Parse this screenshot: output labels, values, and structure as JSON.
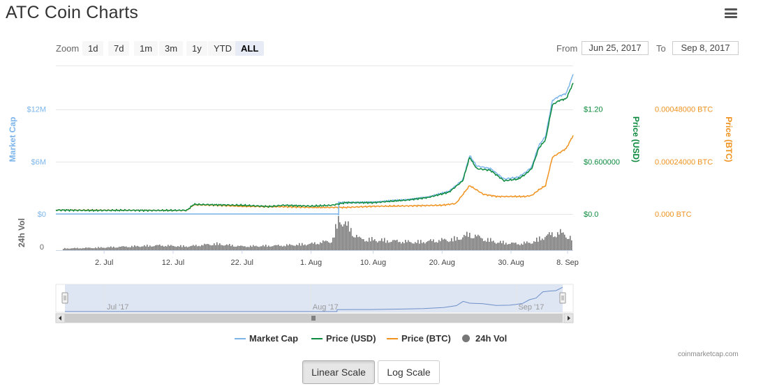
{
  "title": "ATC Coin Charts",
  "icons": {
    "menu": "hamburger-menu-icon"
  },
  "zoom": {
    "label": "Zoom",
    "buttons": [
      "1d",
      "7d",
      "1m",
      "3m",
      "1y",
      "YTD",
      "ALL"
    ],
    "active": "ALL"
  },
  "range": {
    "from_label": "From",
    "from_value": "Jun 25, 2017",
    "to_label": "To",
    "to_value": "Sep 8, 2017"
  },
  "legend": {
    "items": [
      {
        "label": "Market Cap",
        "color": "#7cb5ec"
      },
      {
        "label": "Price (USD)",
        "color": "#0c8a3d"
      },
      {
        "label": "Price (BTC)",
        "color": "#f0921f"
      },
      {
        "label": "24h Vol",
        "color": "#777777"
      }
    ]
  },
  "credit": "coinmarketcap.com",
  "scale_buttons": {
    "linear": "Linear Scale",
    "log": "Log Scale",
    "active": "linear"
  },
  "chart_data": {
    "type": "line",
    "x_range": [
      "2017-06-25",
      "2017-09-08"
    ],
    "x_ticks": [
      "2. Jul",
      "12. Jul",
      "22. Jul",
      "1. Aug",
      "10. Aug",
      "20. Aug",
      "30. Aug",
      "8. Sep"
    ],
    "navigator_ticks": [
      "Jul '17",
      "Aug '17",
      "Sep '17"
    ],
    "axes": {
      "market_cap": {
        "label": "Market Cap",
        "ticks": [
          "$0",
          "$6M",
          "$12M"
        ],
        "range": [
          0,
          17000000
        ],
        "color": "#7cb5ec"
      },
      "price_usd": {
        "label": "Price (USD)",
        "ticks": [
          "$0.0",
          "$0.600000",
          "$1.20"
        ],
        "range": [
          0,
          1.7
        ],
        "color": "#0c8a3d"
      },
      "price_btc": {
        "label": "Price (BTC)",
        "ticks": [
          "0.000 BTC",
          "0.00024000 BTC",
          "0.00048000 BTC"
        ],
        "range": [
          0,
          0.00068
        ],
        "color": "#f0921f"
      },
      "volume": {
        "label": "24h Vol",
        "ticks": [
          "0"
        ],
        "color": "#777777"
      }
    },
    "series": [
      {
        "name": "Price (USD)",
        "axis": "price_usd",
        "points": [
          [
            "2017-06-25",
            0.045
          ],
          [
            "2017-06-30",
            0.04
          ],
          [
            "2017-07-05",
            0.042
          ],
          [
            "2017-07-10",
            0.04
          ],
          [
            "2017-07-14",
            0.042
          ],
          [
            "2017-07-15",
            0.11
          ],
          [
            "2017-07-18",
            0.105
          ],
          [
            "2017-07-22",
            0.1
          ],
          [
            "2017-07-26",
            0.085
          ],
          [
            "2017-07-28",
            0.1
          ],
          [
            "2017-08-01",
            0.09
          ],
          [
            "2017-08-04",
            0.1
          ],
          [
            "2017-08-06",
            0.13
          ],
          [
            "2017-08-10",
            0.13
          ],
          [
            "2017-08-15",
            0.16
          ],
          [
            "2017-08-18",
            0.19
          ],
          [
            "2017-08-21",
            0.25
          ],
          [
            "2017-08-23",
            0.38
          ],
          [
            "2017-08-24",
            0.65
          ],
          [
            "2017-08-25",
            0.52
          ],
          [
            "2017-08-27",
            0.5
          ],
          [
            "2017-08-29",
            0.38
          ],
          [
            "2017-08-31",
            0.4
          ],
          [
            "2017-09-01",
            0.45
          ],
          [
            "2017-09-02",
            0.52
          ],
          [
            "2017-09-03",
            0.75
          ],
          [
            "2017-09-04",
            0.85
          ],
          [
            "2017-09-05",
            1.25
          ],
          [
            "2017-09-06",
            1.3
          ],
          [
            "2017-09-07",
            1.32
          ],
          [
            "2017-09-08",
            1.5
          ]
        ]
      },
      {
        "name": "Market Cap",
        "axis": "market_cap",
        "points": [
          [
            "2017-06-25",
            0
          ],
          [
            "2017-08-05",
            0
          ],
          [
            "2017-08-05",
            1300000
          ],
          [
            "2017-08-10",
            1350000
          ],
          [
            "2017-08-15",
            1650000
          ],
          [
            "2017-08-18",
            1950000
          ],
          [
            "2017-08-21",
            2600000
          ],
          [
            "2017-08-23",
            3900000
          ],
          [
            "2017-08-24",
            6700000
          ],
          [
            "2017-08-25",
            5500000
          ],
          [
            "2017-08-27",
            5200000
          ],
          [
            "2017-08-29",
            4000000
          ],
          [
            "2017-08-31",
            4200000
          ],
          [
            "2017-09-01",
            4700000
          ],
          [
            "2017-09-02",
            5400000
          ],
          [
            "2017-09-03",
            7800000
          ],
          [
            "2017-09-04",
            8900000
          ],
          [
            "2017-09-05",
            13000000
          ],
          [
            "2017-09-06",
            13500000
          ],
          [
            "2017-09-07",
            13800000
          ],
          [
            "2017-09-08",
            16000000
          ]
        ]
      },
      {
        "name": "Price (BTC)",
        "axis": "price_btc",
        "points": [
          [
            "2017-06-25",
            1.8e-05
          ],
          [
            "2017-07-05",
            1.7e-05
          ],
          [
            "2017-07-14",
            1.6e-05
          ],
          [
            "2017-07-15",
            4.2e-05
          ],
          [
            "2017-07-18",
            4e-05
          ],
          [
            "2017-07-22",
            3.5e-05
          ],
          [
            "2017-07-28",
            3.3e-05
          ],
          [
            "2017-08-01",
            3e-05
          ],
          [
            "2017-08-06",
            3e-05
          ],
          [
            "2017-08-10",
            3.5e-05
          ],
          [
            "2017-08-15",
            3.7e-05
          ],
          [
            "2017-08-20",
            4e-05
          ],
          [
            "2017-08-22",
            4.8e-05
          ],
          [
            "2017-08-24",
            0.00013
          ],
          [
            "2017-08-26",
            9e-05
          ],
          [
            "2017-08-28",
            8e-05
          ],
          [
            "2017-08-30",
            8e-05
          ],
          [
            "2017-09-01",
            8e-05
          ],
          [
            "2017-09-02",
            8.5e-05
          ],
          [
            "2017-09-03",
            0.00011
          ],
          [
            "2017-09-04",
            0.00013
          ],
          [
            "2017-09-05",
            0.00026
          ],
          [
            "2017-09-06",
            0.00028
          ],
          [
            "2017-09-07",
            0.0003
          ],
          [
            "2017-09-08",
            0.00036
          ]
        ]
      }
    ],
    "volume_relative": [
      [
        "2017-06-25",
        0.05
      ],
      [
        "2017-07-01",
        0.08
      ],
      [
        "2017-07-06",
        0.12
      ],
      [
        "2017-07-10",
        0.15
      ],
      [
        "2017-07-14",
        0.12
      ],
      [
        "2017-07-18",
        0.2
      ],
      [
        "2017-07-22",
        0.12
      ],
      [
        "2017-07-28",
        0.15
      ],
      [
        "2017-08-01",
        0.2
      ],
      [
        "2017-08-04",
        0.3
      ],
      [
        "2017-08-05",
        1.0
      ],
      [
        "2017-08-06",
        0.8
      ],
      [
        "2017-08-07",
        0.55
      ],
      [
        "2017-08-08",
        0.35
      ],
      [
        "2017-08-12",
        0.3
      ],
      [
        "2017-08-16",
        0.25
      ],
      [
        "2017-08-19",
        0.3
      ],
      [
        "2017-08-22",
        0.35
      ],
      [
        "2017-08-24",
        0.5
      ],
      [
        "2017-08-26",
        0.35
      ],
      [
        "2017-08-28",
        0.25
      ],
      [
        "2017-08-31",
        0.2
      ],
      [
        "2017-09-02",
        0.25
      ],
      [
        "2017-09-04",
        0.45
      ],
      [
        "2017-09-06",
        0.55
      ],
      [
        "2017-09-08",
        0.35
      ]
    ],
    "navigator_series": "Market Cap",
    "grid": "horizontal",
    "legend_position": "bottom-center"
  }
}
